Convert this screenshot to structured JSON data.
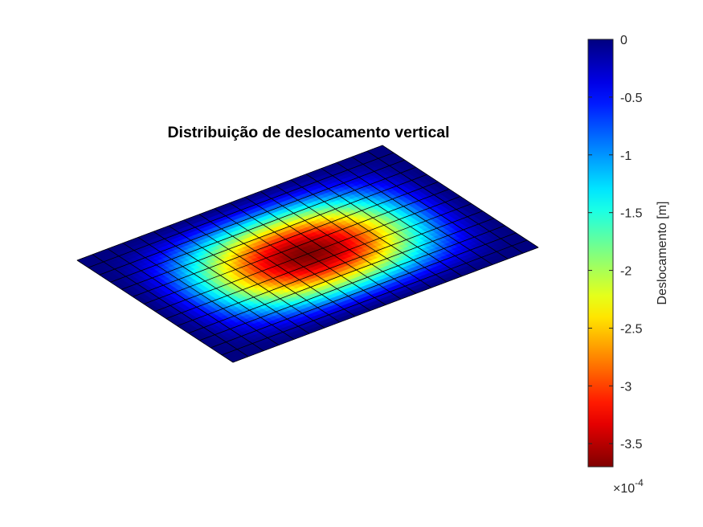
{
  "chart_data": {
    "type": "surface",
    "title": "Distribuição de deslocamento vertical",
    "grid": {
      "nx": 20,
      "ny": 14
    },
    "field": "deflection of a plate, peak at center, zero along edges",
    "min_value": -3.7,
    "max_value": 0,
    "colormap": "jet",
    "colorbar": {
      "label": "Deslocamento [m]",
      "ticks": [
        {
          "value": 0,
          "label": "0"
        },
        {
          "value": -0.5,
          "label": "-0.5"
        },
        {
          "value": -1,
          "label": "-1"
        },
        {
          "value": -1.5,
          "label": "-1.5"
        },
        {
          "value": -2,
          "label": "-2"
        },
        {
          "value": -2.5,
          "label": "-2.5"
        },
        {
          "value": -3,
          "label": "-3"
        },
        {
          "value": -3.5,
          "label": "-3.5"
        }
      ],
      "exponent_base": "×10",
      "exponent_power": "-4",
      "range": [
        -3.7,
        0
      ]
    }
  }
}
